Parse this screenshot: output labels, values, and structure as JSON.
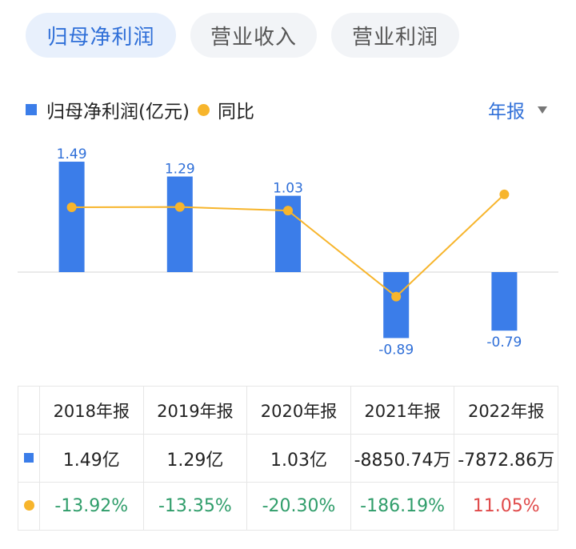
{
  "tabs": [
    "归母净利润",
    "营业收入",
    "营业利润"
  ],
  "legend": {
    "bar_label": "归母净利润(亿元)",
    "line_label": "同比"
  },
  "period_selector": {
    "label": "年报"
  },
  "colors": {
    "bar": "#3b7de9",
    "line": "#f7b52c",
    "negative_pct": "#2f9d6a",
    "positive_pct": "#e04a4a",
    "accent": "#2f6fd8"
  },
  "chart_data": {
    "type": "bar",
    "categories": [
      "2018年报",
      "2019年报",
      "2020年报",
      "2021年报",
      "2022年报"
    ],
    "series": [
      {
        "name": "归母净利润(亿元)",
        "kind": "bar",
        "values": [
          1.49,
          1.29,
          1.03,
          -0.89,
          -0.79
        ],
        "labels": [
          "1.49",
          "1.29",
          "1.03",
          "-0.89",
          "-0.79"
        ]
      },
      {
        "name": "同比",
        "kind": "line",
        "unit": "%",
        "values": [
          -13.92,
          -13.35,
          -20.3,
          -186.19,
          11.05
        ]
      }
    ],
    "ylim_bar": [
      -1.1,
      1.8
    ],
    "ylim_line": [
      -220,
      80
    ]
  },
  "table": {
    "headers": [
      "2018年报",
      "2019年报",
      "2020年报",
      "2021年报",
      "2022年报"
    ],
    "values": [
      "1.49亿",
      "1.29亿",
      "1.03亿",
      "-8850.74万",
      "-7872.86万"
    ],
    "yoy": [
      "-13.92%",
      "-13.35%",
      "-20.30%",
      "-186.19%",
      "11.05%"
    ]
  }
}
